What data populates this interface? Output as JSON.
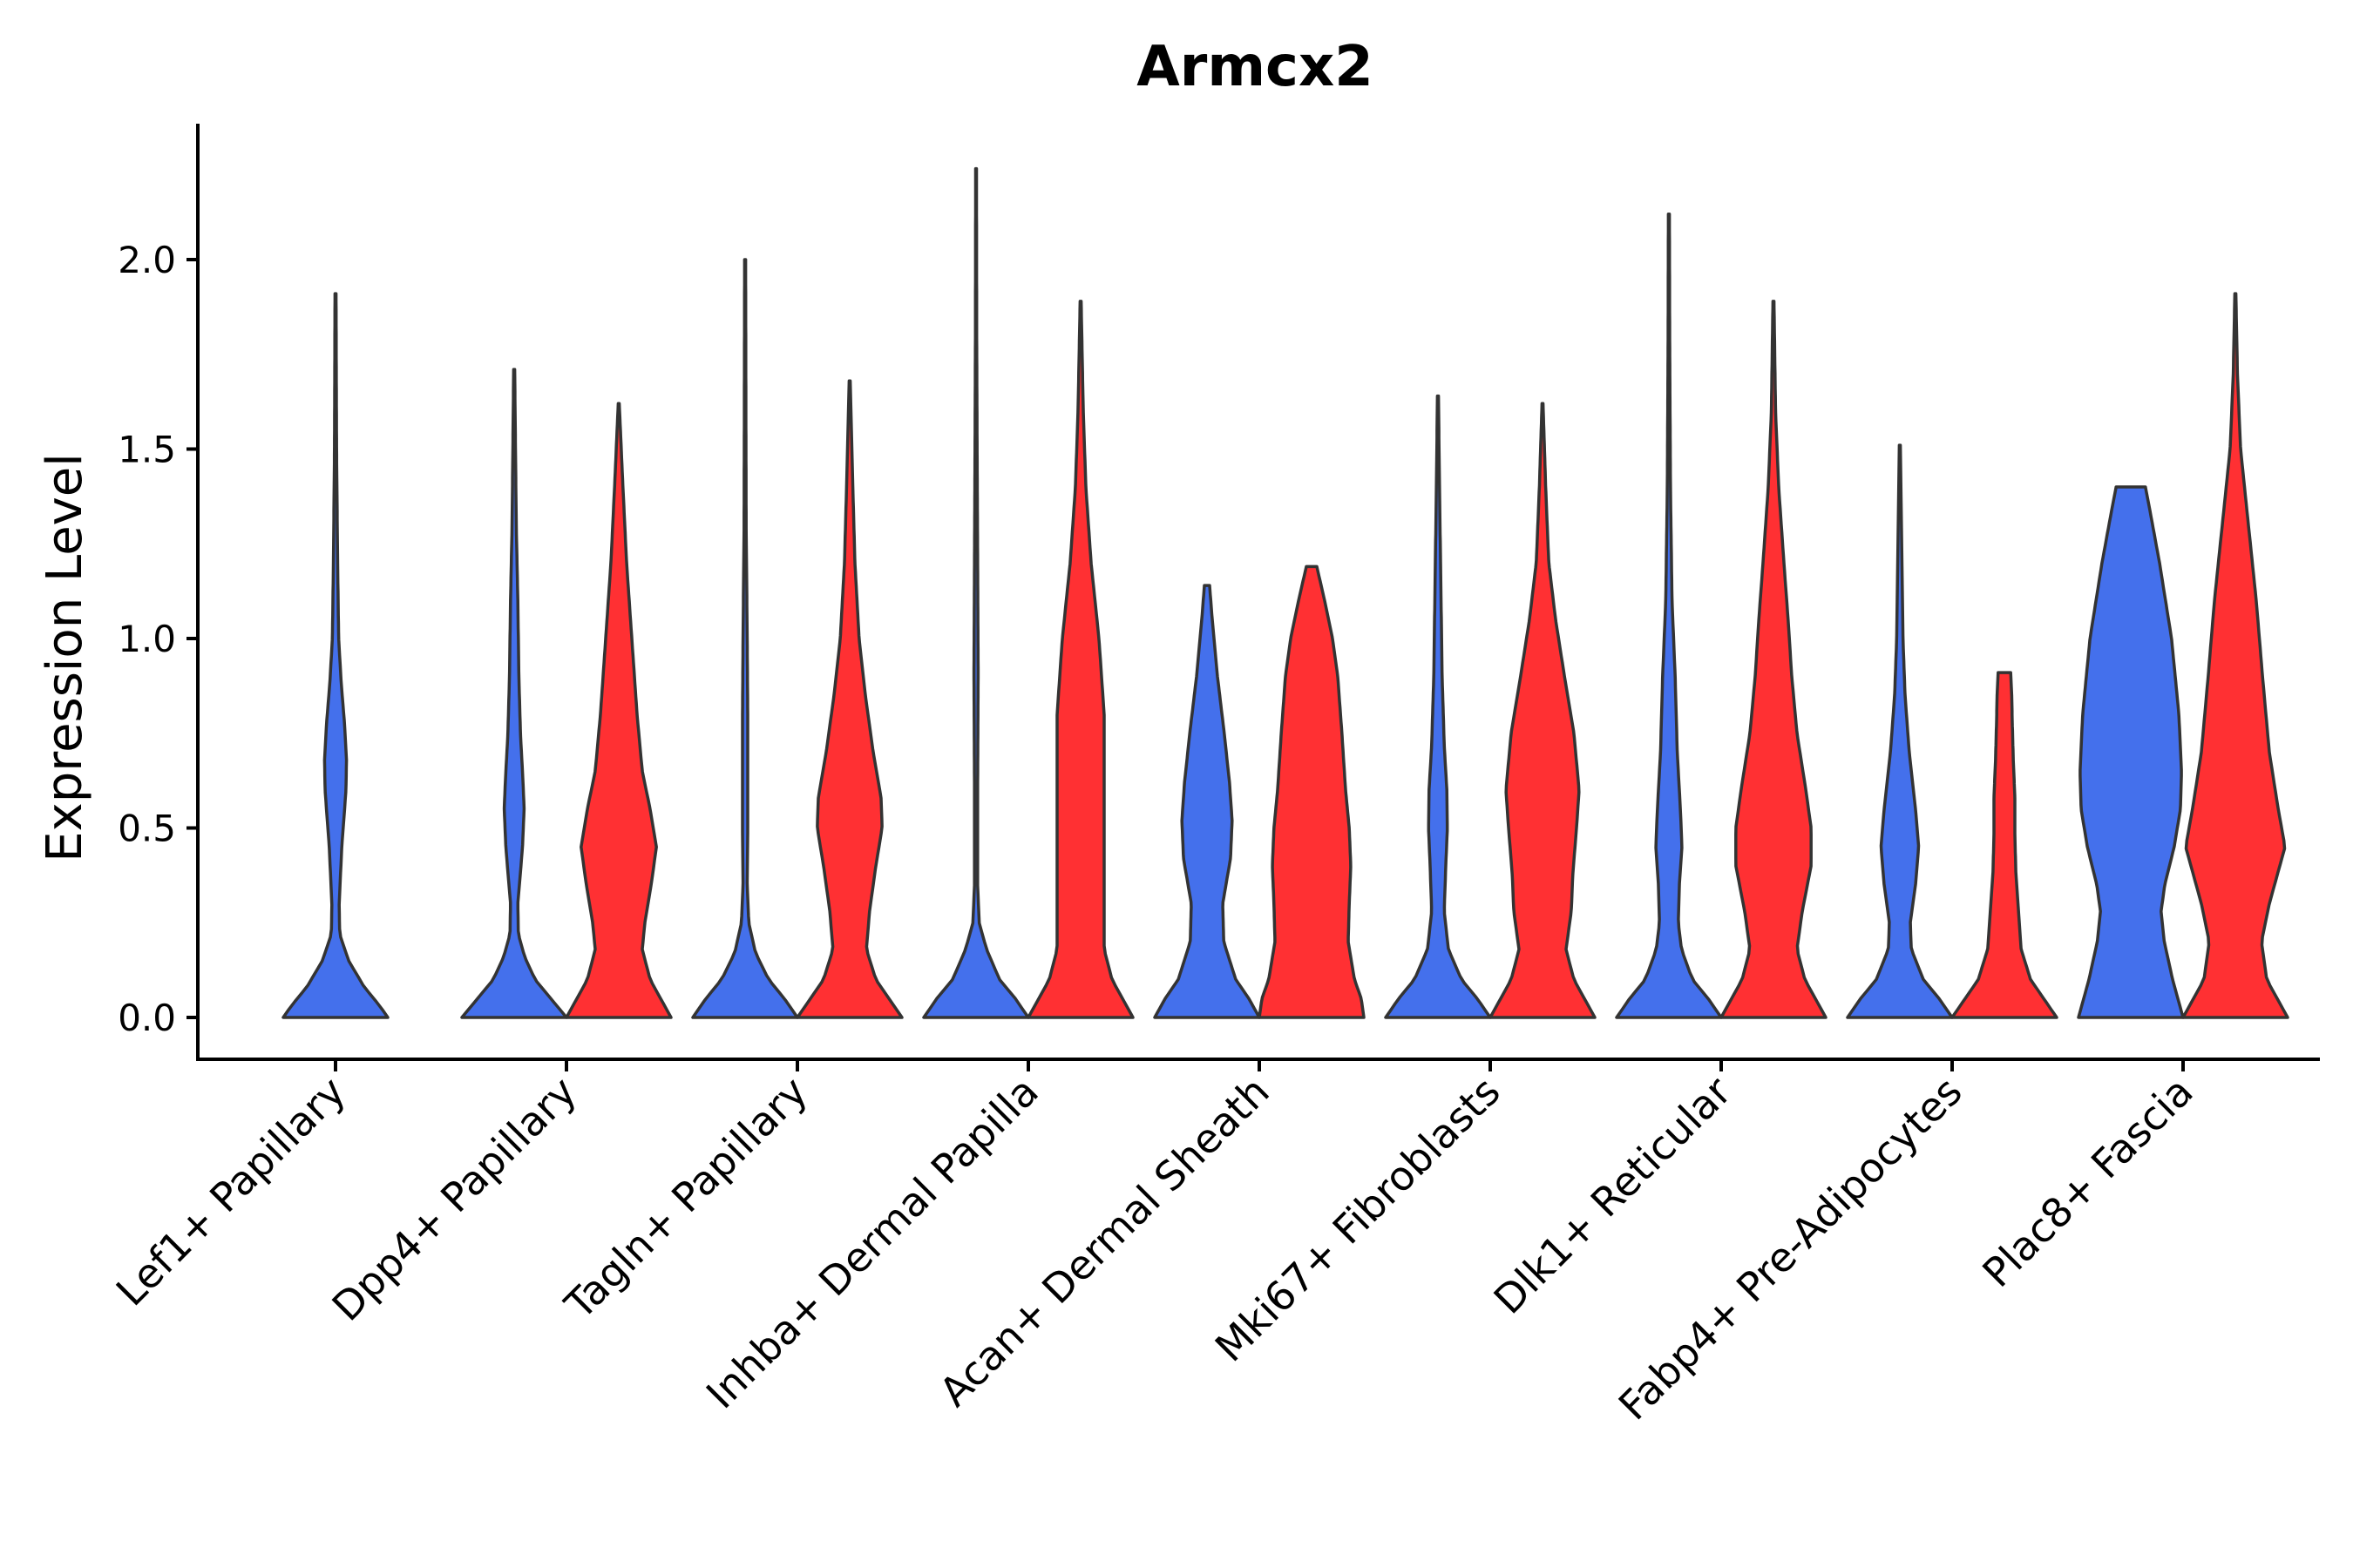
{
  "chart_data": {
    "type": "violin",
    "title": "Armcx2",
    "xlabel": "",
    "ylabel": "Expression Level",
    "ylim": [
      -0.11,
      2.35
    ],
    "yticks": [
      0.0,
      0.5,
      1.0,
      1.5,
      2.0
    ],
    "ytick_labels": [
      "0.0",
      "0.5",
      "1.0",
      "1.5",
      "2.0"
    ],
    "grid": false,
    "legend": "none",
    "colors": {
      "group1": "#4470EC",
      "group2": "#FF3033",
      "outline": "#333333"
    },
    "categories": [
      "Lef1+ Papillary",
      "Dpp4+ Papillary",
      "Tagln+ Papillary",
      "Inhba+ Dermal Papilla",
      "Acan+ Dermal Sheath",
      "Mki67+ Fibroblasts",
      "Dlk1+ Reticular",
      "Fabp4+ Pre-Adipocytes",
      "Plac8+ Fascia"
    ],
    "series": [
      {
        "name": "group1",
        "color": "#4470EC",
        "violins": [
          {
            "max": 1.91,
            "profile": [
              [
                0,
                1
              ],
              [
                0.03,
                0.85
              ],
              [
                0.08,
                0.55
              ],
              [
                0.15,
                0.25
              ],
              [
                0.22,
                0.08
              ],
              [
                0.3,
                0.07
              ],
              [
                0.45,
                0.12
              ],
              [
                0.6,
                0.2
              ],
              [
                0.68,
                0.21
              ],
              [
                0.78,
                0.17
              ],
              [
                0.88,
                0.11
              ],
              [
                1.0,
                0.06
              ],
              [
                1.2,
                0.04
              ],
              [
                1.5,
                0.02
              ],
              [
                1.91,
                0.01
              ]
            ]
          },
          {
            "max": 1.71,
            "profile": [
              [
                0,
                1
              ],
              [
                0.05,
                0.7
              ],
              [
                0.1,
                0.4
              ],
              [
                0.16,
                0.2
              ],
              [
                0.22,
                0.08
              ],
              [
                0.3,
                0.07
              ],
              [
                0.45,
                0.16
              ],
              [
                0.55,
                0.19
              ],
              [
                0.62,
                0.17
              ],
              [
                0.75,
                0.12
              ],
              [
                0.9,
                0.09
              ],
              [
                1.1,
                0.07
              ],
              [
                1.3,
                0.04
              ],
              [
                1.71,
                0.01
              ]
            ]
          },
          {
            "max": 2.0,
            "profile": [
              [
                0,
                1
              ],
              [
                0.05,
                0.75
              ],
              [
                0.1,
                0.45
              ],
              [
                0.17,
                0.2
              ],
              [
                0.25,
                0.07
              ],
              [
                0.35,
                0.04
              ],
              [
                0.5,
                0.05
              ],
              [
                0.65,
                0.05
              ],
              [
                0.8,
                0.05
              ],
              [
                1.0,
                0.04
              ],
              [
                1.3,
                0.02
              ],
              [
                1.6,
                0.015
              ],
              [
                2.0,
                0.01
              ]
            ]
          },
          {
            "max": 2.24,
            "profile": [
              [
                0,
                1
              ],
              [
                0.05,
                0.75
              ],
              [
                0.1,
                0.45
              ],
              [
                0.18,
                0.2
              ],
              [
                0.25,
                0.06
              ],
              [
                0.35,
                0.03
              ],
              [
                0.6,
                0.03
              ],
              [
                0.9,
                0.04
              ],
              [
                1.2,
                0.03
              ],
              [
                1.5,
                0.02
              ],
              [
                1.8,
                0.012
              ],
              [
                2.24,
                0.008
              ]
            ]
          },
          {
            "max": 1.14,
            "profile": [
              [
                0,
                1
              ],
              [
                0.05,
                0.8
              ],
              [
                0.1,
                0.55
              ],
              [
                0.2,
                0.32
              ],
              [
                0.3,
                0.3
              ],
              [
                0.42,
                0.45
              ],
              [
                0.52,
                0.48
              ],
              [
                0.62,
                0.43
              ],
              [
                0.75,
                0.33
              ],
              [
                0.9,
                0.2
              ],
              [
                1.05,
                0.1
              ],
              [
                1.14,
                0.05
              ]
            ]
          },
          {
            "max": 1.64,
            "profile": [
              [
                0,
                1
              ],
              [
                0.05,
                0.75
              ],
              [
                0.1,
                0.45
              ],
              [
                0.18,
                0.2
              ],
              [
                0.28,
                0.12
              ],
              [
                0.4,
                0.15
              ],
              [
                0.5,
                0.18
              ],
              [
                0.6,
                0.17
              ],
              [
                0.72,
                0.12
              ],
              [
                0.9,
                0.08
              ],
              [
                1.1,
                0.06
              ],
              [
                1.4,
                0.03
              ],
              [
                1.64,
                0.01
              ]
            ]
          },
          {
            "max": 2.12,
            "profile": [
              [
                0,
                1
              ],
              [
                0.05,
                0.75
              ],
              [
                0.1,
                0.45
              ],
              [
                0.18,
                0.24
              ],
              [
                0.25,
                0.18
              ],
              [
                0.35,
                0.2
              ],
              [
                0.45,
                0.25
              ],
              [
                0.55,
                0.22
              ],
              [
                0.7,
                0.16
              ],
              [
                0.9,
                0.12
              ],
              [
                1.1,
                0.06
              ],
              [
                1.4,
                0.03
              ],
              [
                1.8,
                0.015
              ],
              [
                2.12,
                0.01
              ]
            ]
          },
          {
            "max": 1.51,
            "profile": [
              [
                0,
                1
              ],
              [
                0.05,
                0.75
              ],
              [
                0.1,
                0.45
              ],
              [
                0.18,
                0.22
              ],
              [
                0.25,
                0.2
              ],
              [
                0.35,
                0.3
              ],
              [
                0.45,
                0.36
              ],
              [
                0.55,
                0.3
              ],
              [
                0.7,
                0.18
              ],
              [
                0.85,
                0.1
              ],
              [
                1.0,
                0.06
              ],
              [
                1.2,
                0.04
              ],
              [
                1.51,
                0.01
              ]
            ]
          },
          {
            "max": 1.4,
            "profile": [
              [
                0,
                1
              ],
              [
                0.1,
                0.8
              ],
              [
                0.2,
                0.64
              ],
              [
                0.28,
                0.58
              ],
              [
                0.35,
                0.65
              ],
              [
                0.45,
                0.83
              ],
              [
                0.55,
                0.95
              ],
              [
                0.65,
                0.97
              ],
              [
                0.8,
                0.92
              ],
              [
                1.0,
                0.78
              ],
              [
                1.2,
                0.55
              ],
              [
                1.35,
                0.35
              ],
              [
                1.4,
                0.28
              ]
            ]
          }
        ]
      },
      {
        "name": "group2",
        "color": "#FF3033",
        "violins": [
          null,
          {
            "max": 1.62,
            "profile": [
              [
                0,
                1
              ],
              [
                0.05,
                0.8
              ],
              [
                0.1,
                0.6
              ],
              [
                0.18,
                0.45
              ],
              [
                0.25,
                0.5
              ],
              [
                0.35,
                0.62
              ],
              [
                0.45,
                0.72
              ],
              [
                0.55,
                0.6
              ],
              [
                0.65,
                0.45
              ],
              [
                0.8,
                0.35
              ],
              [
                1.0,
                0.25
              ],
              [
                1.2,
                0.15
              ],
              [
                1.4,
                0.08
              ],
              [
                1.62,
                0.01
              ]
            ]
          },
          {
            "max": 1.68,
            "profile": [
              [
                0,
                1
              ],
              [
                0.05,
                0.75
              ],
              [
                0.1,
                0.5
              ],
              [
                0.18,
                0.32
              ],
              [
                0.28,
                0.38
              ],
              [
                0.4,
                0.5
              ],
              [
                0.5,
                0.62
              ],
              [
                0.58,
                0.6
              ],
              [
                0.7,
                0.45
              ],
              [
                0.85,
                0.3
              ],
              [
                1.0,
                0.18
              ],
              [
                1.2,
                0.1
              ],
              [
                1.4,
                0.06
              ],
              [
                1.68,
                0.01
              ]
            ]
          },
          {
            "max": 1.89,
            "profile": [
              [
                0,
                1
              ],
              [
                0.05,
                0.8
              ],
              [
                0.1,
                0.6
              ],
              [
                0.18,
                0.45
              ],
              [
                0.28,
                0.45
              ],
              [
                0.4,
                0.45
              ],
              [
                0.6,
                0.45
              ],
              [
                0.8,
                0.45
              ],
              [
                1.0,
                0.35
              ],
              [
                1.2,
                0.2
              ],
              [
                1.4,
                0.1
              ],
              [
                1.6,
                0.05
              ],
              [
                1.89,
                0.01
              ]
            ]
          },
          {
            "max": 1.19,
            "profile": [
              [
                0,
                1
              ],
              [
                0.05,
                0.95
              ],
              [
                0.1,
                0.82
              ],
              [
                0.2,
                0.7
              ],
              [
                0.3,
                0.72
              ],
              [
                0.4,
                0.75
              ],
              [
                0.5,
                0.72
              ],
              [
                0.6,
                0.65
              ],
              [
                0.75,
                0.58
              ],
              [
                0.9,
                0.5
              ],
              [
                1.0,
                0.4
              ],
              [
                1.1,
                0.25
              ],
              [
                1.19,
                0.1
              ]
            ]
          },
          {
            "max": 1.62,
            "profile": [
              [
                0,
                1
              ],
              [
                0.05,
                0.8
              ],
              [
                0.1,
                0.6
              ],
              [
                0.18,
                0.45
              ],
              [
                0.28,
                0.55
              ],
              [
                0.38,
                0.58
              ],
              [
                0.5,
                0.65
              ],
              [
                0.6,
                0.7
              ],
              [
                0.75,
                0.6
              ],
              [
                0.9,
                0.42
              ],
              [
                1.05,
                0.25
              ],
              [
                1.2,
                0.12
              ],
              [
                1.4,
                0.06
              ],
              [
                1.62,
                0.01
              ]
            ]
          },
          {
            "max": 1.89,
            "profile": [
              [
                0,
                1
              ],
              [
                0.05,
                0.8
              ],
              [
                0.1,
                0.6
              ],
              [
                0.18,
                0.45
              ],
              [
                0.28,
                0.55
              ],
              [
                0.4,
                0.72
              ],
              [
                0.5,
                0.72
              ],
              [
                0.6,
                0.62
              ],
              [
                0.75,
                0.45
              ],
              [
                0.9,
                0.35
              ],
              [
                1.05,
                0.28
              ],
              [
                1.2,
                0.2
              ],
              [
                1.4,
                0.1
              ],
              [
                1.6,
                0.04
              ],
              [
                1.89,
                0.01
              ]
            ]
          },
          {
            "max": 0.91,
            "profile": [
              [
                0,
                1
              ],
              [
                0.05,
                0.75
              ],
              [
                0.1,
                0.5
              ],
              [
                0.18,
                0.32
              ],
              [
                0.28,
                0.27
              ],
              [
                0.38,
                0.22
              ],
              [
                0.48,
                0.2
              ],
              [
                0.58,
                0.2
              ],
              [
                0.68,
                0.17
              ],
              [
                0.78,
                0.15
              ],
              [
                0.85,
                0.14
              ],
              [
                0.91,
                0.12
              ]
            ]
          },
          {
            "max": 1.91,
            "profile": [
              [
                0,
                1
              ],
              [
                0.05,
                0.8
              ],
              [
                0.1,
                0.6
              ],
              [
                0.2,
                0.5
              ],
              [
                0.3,
                0.65
              ],
              [
                0.45,
                0.95
              ],
              [
                0.55,
                0.82
              ],
              [
                0.7,
                0.65
              ],
              [
                0.9,
                0.52
              ],
              [
                1.1,
                0.4
              ],
              [
                1.3,
                0.25
              ],
              [
                1.5,
                0.1
              ],
              [
                1.7,
                0.04
              ],
              [
                1.91,
                0.01
              ]
            ]
          }
        ]
      }
    ]
  }
}
